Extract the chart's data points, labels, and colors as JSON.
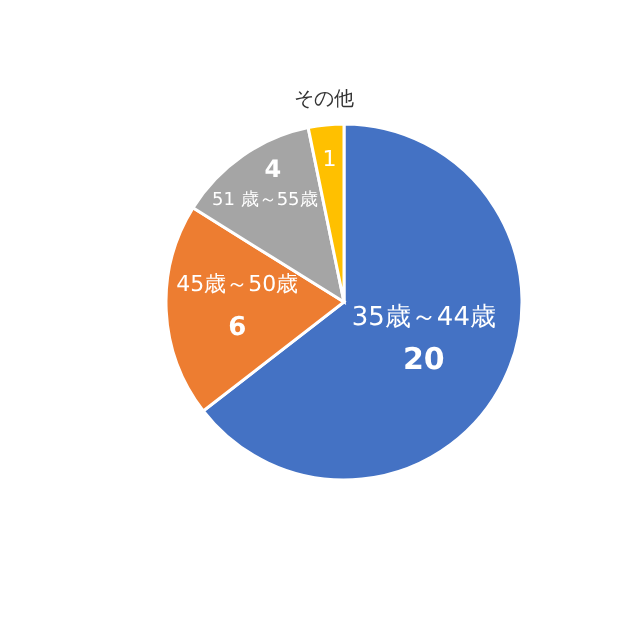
{
  "chart_data": {
    "type": "pie",
    "categories": [
      "35歳～44歳",
      "45歳～50歳",
      "51 歳～55歳",
      "その他"
    ],
    "values": [
      20,
      6,
      4,
      1
    ],
    "colors": [
      "#4472c4",
      "#ed7d31",
      "#a5a5a5",
      "#ffc000"
    ],
    "data_labels": true
  }
}
